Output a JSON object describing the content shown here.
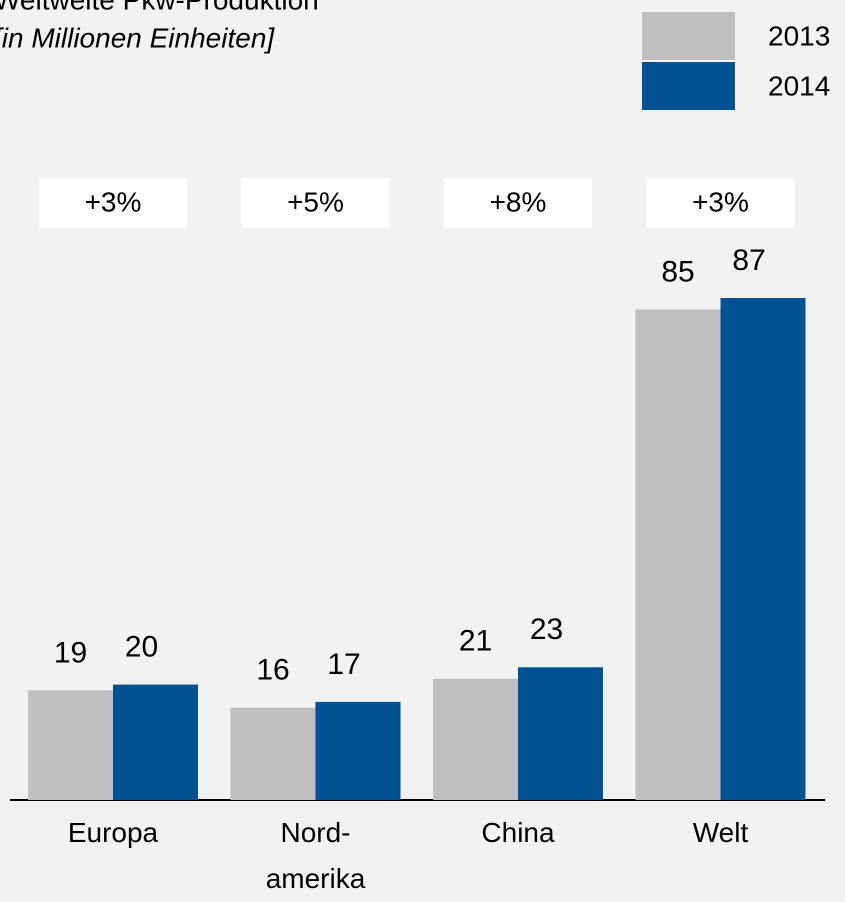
{
  "chart_data": {
    "type": "bar",
    "title": "Weltweite Pkw-Produktion",
    "subtitle": "[in Millionen Einheiten]",
    "categories": [
      "Europa",
      "Nord-\namerika",
      "China",
      "Welt"
    ],
    "series": [
      {
        "name": "2013",
        "color": "#bfbfbf",
        "values": [
          19,
          16,
          21,
          85
        ]
      },
      {
        "name": "2014",
        "color": "#005293",
        "values": [
          20,
          17,
          23,
          87
        ]
      }
    ],
    "annotations": [
      "+3%",
      "+5%",
      "+8%",
      "+3%"
    ]
  }
}
